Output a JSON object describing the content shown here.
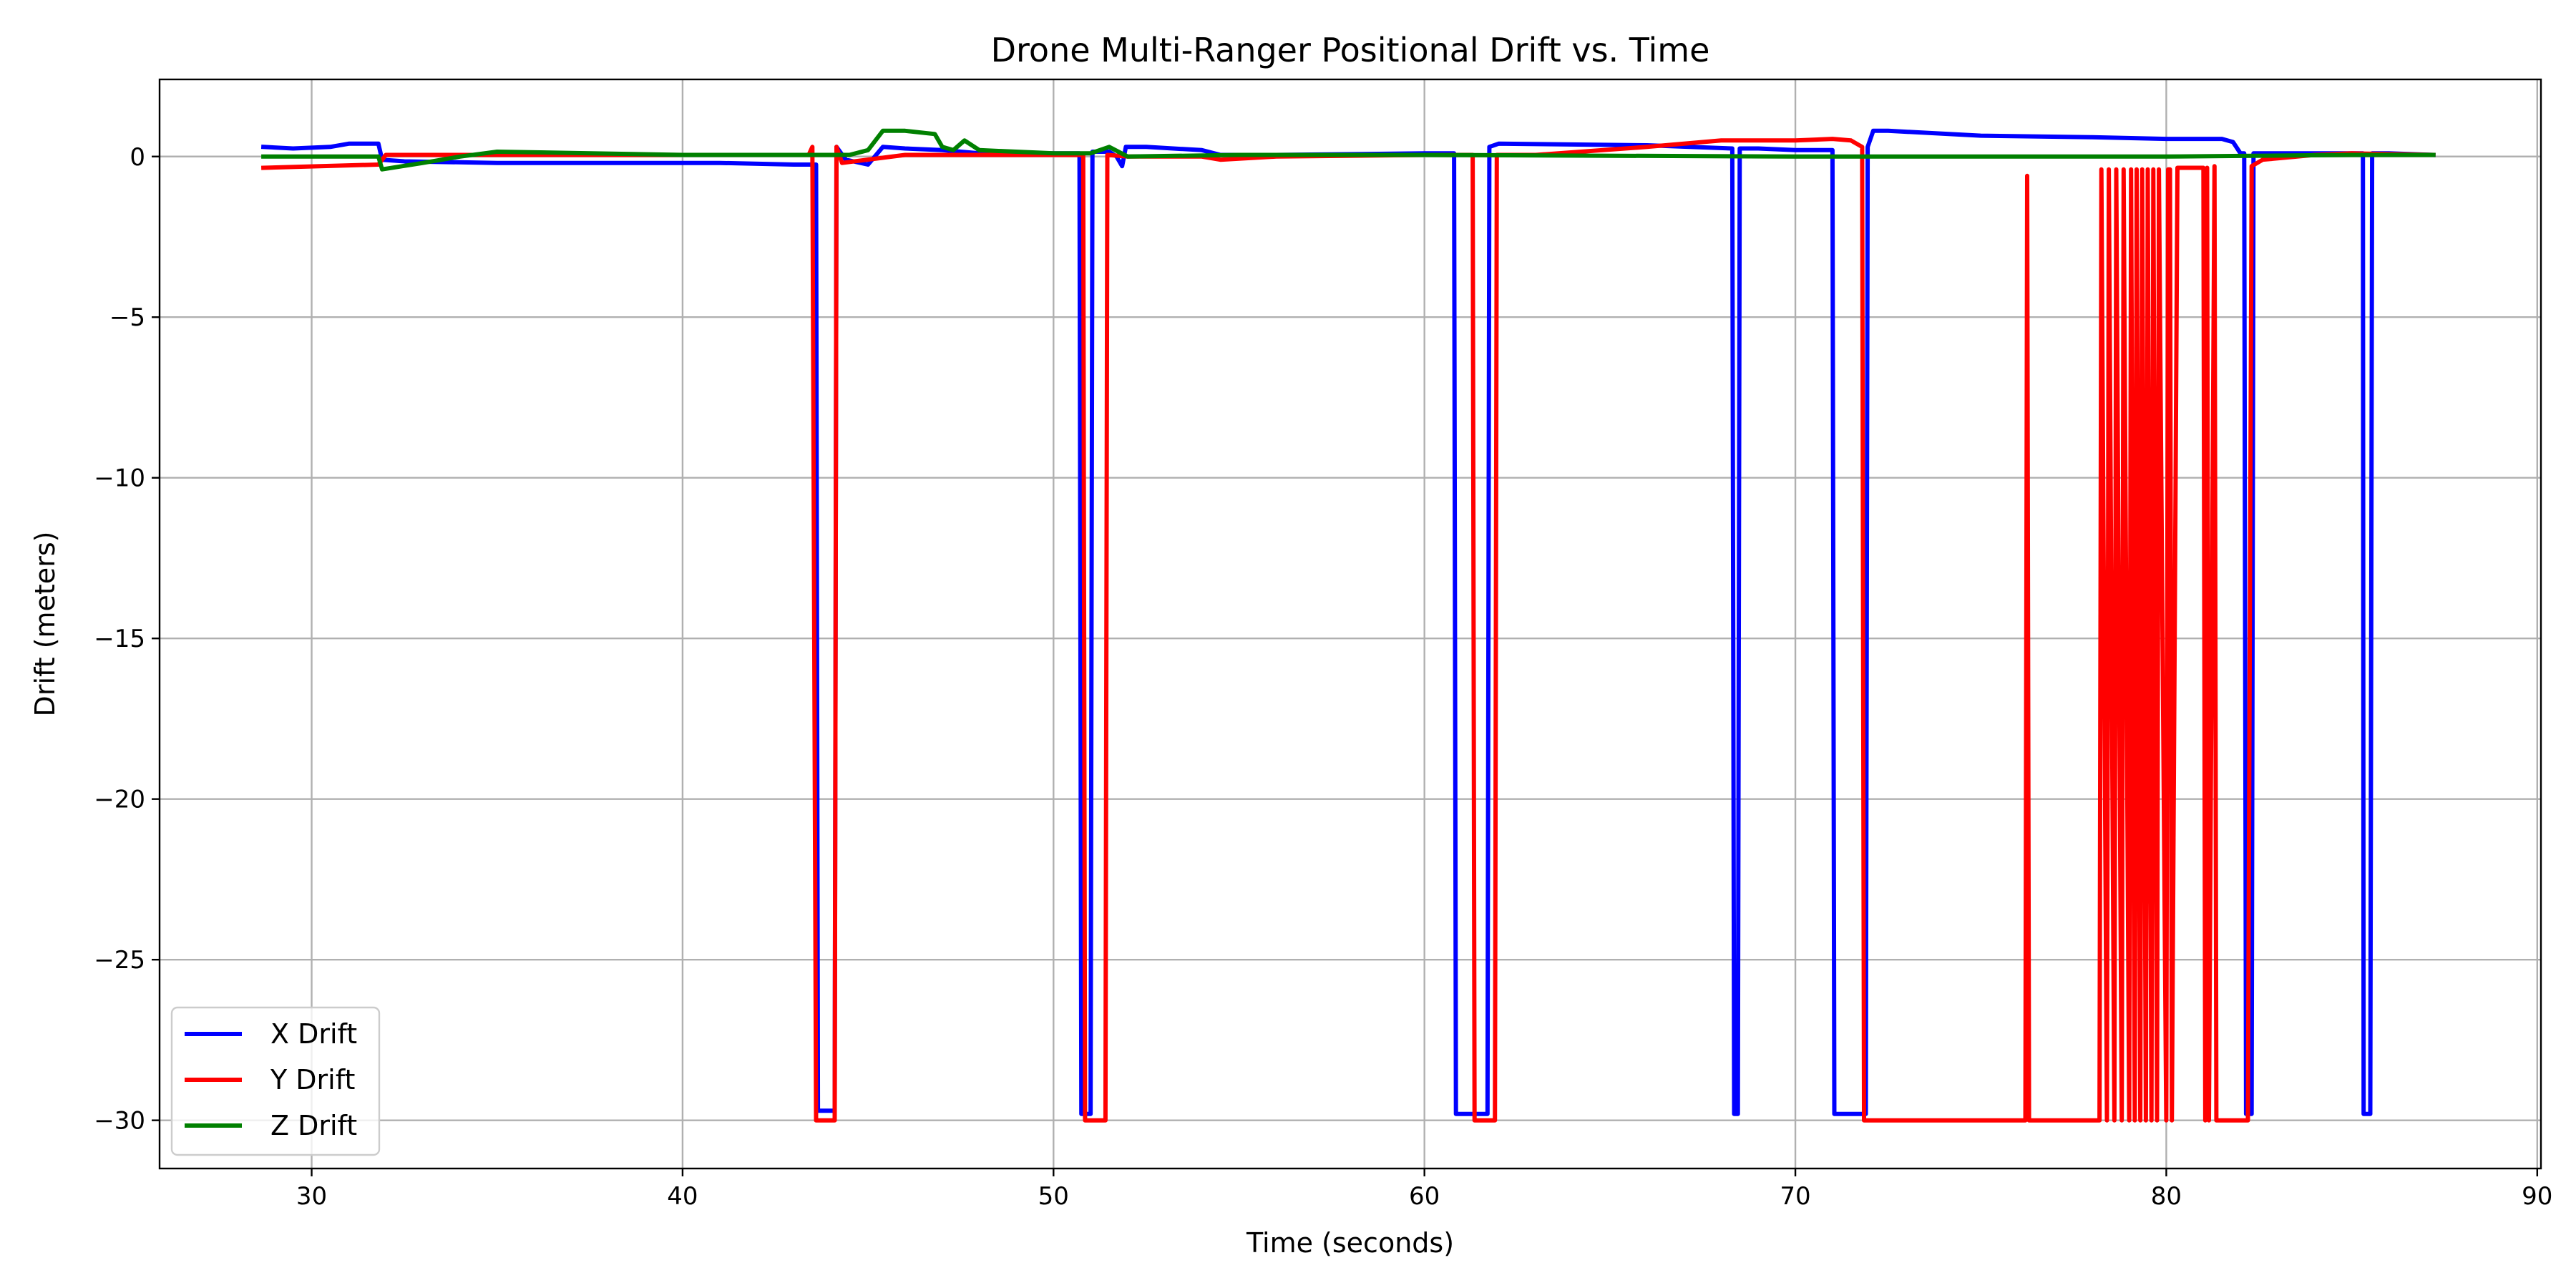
{
  "chart_data": {
    "type": "line",
    "title": "Drone Multi-Ranger Positional Drift vs. Time",
    "xlabel": "Time (seconds)",
    "ylabel": "Drift (meters)",
    "xlim": [
      25.9,
      90.1
    ],
    "ylim": [
      -31.5,
      2.4
    ],
    "xticks": [
      30,
      40,
      50,
      60,
      70,
      80,
      90
    ],
    "yticks": [
      0,
      -5,
      -10,
      -15,
      -20,
      -25,
      -30
    ],
    "xtick_labels": [
      "30",
      "40",
      "50",
      "60",
      "70",
      "80",
      "90"
    ],
    "ytick_labels": [
      "0",
      "−5",
      "−10",
      "−15",
      "−20",
      "−25",
      "−30"
    ],
    "grid": true,
    "legend_position": "lower-left",
    "series": [
      {
        "name": "X Drift",
        "color": "#0000ff",
        "x": [
          28.7,
          29.5,
          30.5,
          31.0,
          31.8,
          31.9,
          32.5,
          35.0,
          38.0,
          41.0,
          43.0,
          43.6,
          43.65,
          44.1,
          44.15,
          44.4,
          45.0,
          45.4,
          46.0,
          47.0,
          48.0,
          50.0,
          50.7,
          50.75,
          51.0,
          51.05,
          51.5,
          51.7,
          51.85,
          51.95,
          52.5,
          54.0,
          54.5,
          56.0,
          60.0,
          60.8,
          60.85,
          61.7,
          61.75,
          62.0,
          66.0,
          68.3,
          68.35,
          68.45,
          68.5,
          69.0,
          70.0,
          71.0,
          71.05,
          71.9,
          71.95,
          72.1,
          72.5,
          75.0,
          78.0,
          80.0,
          81.5,
          81.8,
          82.0,
          82.1,
          82.15,
          82.3,
          82.35,
          83.0,
          85.0,
          85.3,
          85.32,
          85.5,
          85.55,
          86.0,
          87.2
        ],
        "y": [
          0.3,
          0.25,
          0.3,
          0.4,
          0.4,
          -0.1,
          -0.15,
          -0.2,
          -0.2,
          -0.2,
          -0.25,
          -0.25,
          -29.7,
          -29.7,
          0.3,
          -0.1,
          -0.25,
          0.3,
          0.25,
          0.2,
          0.1,
          0.1,
          0.1,
          -29.8,
          -29.8,
          0.15,
          0.15,
          0.0,
          -0.3,
          0.3,
          0.3,
          0.2,
          0.05,
          0.05,
          0.1,
          0.1,
          -29.8,
          -29.8,
          0.3,
          0.4,
          0.35,
          0.25,
          -29.8,
          -29.8,
          0.25,
          0.25,
          0.2,
          0.2,
          -29.8,
          -29.8,
          0.3,
          0.8,
          0.8,
          0.65,
          0.6,
          0.55,
          0.55,
          0.45,
          0.1,
          0.1,
          -29.8,
          -29.8,
          0.1,
          0.1,
          0.1,
          0.1,
          -29.8,
          -29.8,
          0.1,
          0.1,
          0.05
        ]
      },
      {
        "name": "Y Drift",
        "color": "#ff0000",
        "x": [
          28.7,
          31.8,
          32.0,
          40.0,
          43.4,
          43.5,
          43.6,
          44.1,
          44.15,
          44.3,
          46.0,
          50.5,
          50.8,
          50.85,
          51.4,
          51.45,
          52.0,
          54.0,
          54.5,
          56.0,
          60.0,
          61.0,
          61.3,
          61.35,
          61.9,
          61.95,
          63.0,
          66.0,
          68.0,
          70.0,
          71.0,
          71.5,
          71.8,
          71.85,
          76.2,
          76.25,
          76.3,
          78.2,
          78.25,
          78.4,
          78.45,
          78.6,
          78.65,
          78.8,
          78.85,
          79.0,
          79.05,
          79.15,
          79.2,
          79.3,
          79.35,
          79.45,
          79.5,
          79.6,
          79.65,
          79.75,
          79.8,
          80.0,
          80.05,
          80.1,
          80.15,
          80.3,
          80.35,
          81.0,
          81.05,
          81.1,
          81.15,
          81.3,
          81.35,
          82.2,
          82.3,
          82.6,
          84.0,
          85.0,
          87.2
        ],
        "y": [
          -0.35,
          -0.25,
          0.05,
          0.05,
          0.05,
          0.3,
          -30.0,
          -30.0,
          0.3,
          -0.2,
          0.05,
          0.05,
          0.05,
          -30.0,
          -30.0,
          0.05,
          0.0,
          0.0,
          -0.1,
          0.0,
          0.05,
          0.05,
          0.05,
          -30.0,
          -30.0,
          0.05,
          0.05,
          0.3,
          0.5,
          0.5,
          0.55,
          0.5,
          0.3,
          -30.0,
          -30.0,
          -0.6,
          -30.0,
          -30.0,
          -0.4,
          -30.0,
          -0.4,
          -30.0,
          -0.4,
          -30.0,
          -0.4,
          -30.0,
          -0.4,
          -30.0,
          -0.4,
          -30.0,
          -0.4,
          -30.0,
          -0.4,
          -30.0,
          -0.4,
          -30.0,
          -0.4,
          -30.0,
          -0.4,
          -0.4,
          -30.0,
          -0.35,
          -0.35,
          -0.35,
          -30.0,
          -0.35,
          -30.0,
          -0.3,
          -30.0,
          -30.0,
          -0.3,
          -0.1,
          0.05,
          0.1,
          0.05
        ]
      },
      {
        "name": "Z Drift",
        "color": "#008000",
        "x": [
          28.7,
          31.8,
          31.9,
          33.0,
          34.0,
          35.0,
          40.0,
          44.5,
          45.0,
          45.4,
          46.0,
          46.8,
          47.0,
          47.3,
          47.6,
          48.0,
          50.0,
          51.0,
          51.5,
          52.0,
          55.0,
          60.0,
          70.0,
          80.0,
          85.0,
          87.2
        ],
        "y": [
          0.0,
          0.0,
          -0.4,
          -0.2,
          0.0,
          0.15,
          0.05,
          0.05,
          0.2,
          0.8,
          0.8,
          0.7,
          0.3,
          0.2,
          0.5,
          0.2,
          0.1,
          0.1,
          0.3,
          0.0,
          0.05,
          0.05,
          0.0,
          0.0,
          0.05,
          0.05
        ]
      }
    ]
  }
}
